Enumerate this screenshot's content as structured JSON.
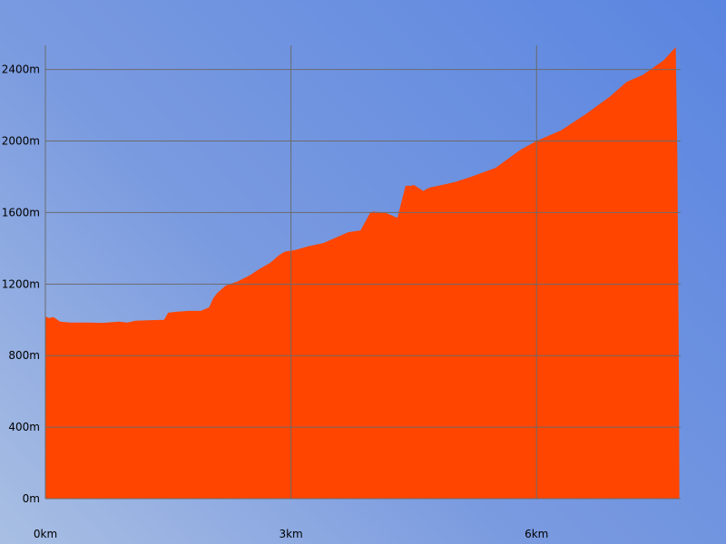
{
  "chart_data": {
    "type": "area",
    "title": "",
    "xlabel": "",
    "ylabel": "",
    "x_unit": "km",
    "y_unit": "m",
    "xlim": [
      0,
      7.76
    ],
    "ylim": [
      0,
      2535
    ],
    "x_ticks": [
      {
        "value": 0,
        "label": "0km"
      },
      {
        "value": 3,
        "label": "3km"
      },
      {
        "value": 6,
        "label": "6km"
      }
    ],
    "y_ticks": [
      {
        "value": 0,
        "label": "0m"
      },
      {
        "value": 400,
        "label": "400m"
      },
      {
        "value": 800,
        "label": "800m"
      },
      {
        "value": 1200,
        "label": "1200m"
      },
      {
        "value": 1600,
        "label": "1600m"
      },
      {
        "value": 2000,
        "label": "2000m"
      },
      {
        "value": 2400,
        "label": "2400m"
      }
    ],
    "grid": true,
    "legend": "none",
    "colors": {
      "fill": "#ff4500",
      "grid": "#6b6b6b",
      "text": "#000000"
    },
    "series": [
      {
        "name": "",
        "color": "#ff4500",
        "x": [
          0,
          0.04,
          0.1,
          0.18,
          0.3,
          0.5,
          0.7,
          0.9,
          1.0,
          1.1,
          1.3,
          1.45,
          1.5,
          1.6,
          1.75,
          1.9,
          2.0,
          2.05,
          2.1,
          2.2,
          2.35,
          2.5,
          2.6,
          2.75,
          2.85,
          2.92,
          2.97,
          3.05,
          3.2,
          3.4,
          3.55,
          3.7,
          3.85,
          3.97,
          4.0,
          4.15,
          4.3,
          4.4,
          4.47,
          4.5,
          4.62,
          4.65,
          4.7,
          4.8,
          5.0,
          5.2,
          5.5,
          5.8,
          6.0,
          6.3,
          6.6,
          6.9,
          7.1,
          7.3,
          7.55,
          7.7,
          7.72,
          7.73,
          7.74,
          7.745,
          7.75,
          7.76
        ],
        "y": [
          1020,
          1010,
          1015,
          990,
          985,
          985,
          983,
          990,
          985,
          995,
          998,
          1000,
          1040,
          1045,
          1050,
          1050,
          1070,
          1120,
          1150,
          1190,
          1215,
          1250,
          1280,
          1320,
          1360,
          1380,
          1385,
          1390,
          1410,
          1430,
          1460,
          1490,
          1500,
          1600,
          1605,
          1600,
          1570,
          1750,
          1750,
          1755,
          1720,
          1730,
          1740,
          1750,
          1770,
          1800,
          1850,
          1950,
          2000,
          2060,
          2150,
          2250,
          2330,
          2370,
          2450,
          2525,
          1900,
          1300,
          600,
          0,
          0,
          0
        ]
      }
    ]
  }
}
